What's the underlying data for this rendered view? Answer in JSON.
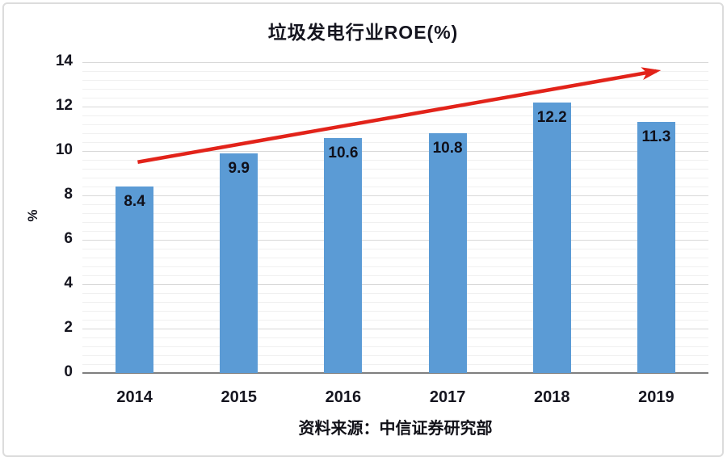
{
  "chart_data": {
    "type": "bar",
    "title": "垃圾发电行业ROE(%)",
    "categories": [
      "2014",
      "2015",
      "2016",
      "2017",
      "2018",
      "2019"
    ],
    "values": [
      8.4,
      9.9,
      10.6,
      10.8,
      12.2,
      11.3
    ],
    "value_labels": [
      "8.4",
      "9.9",
      "10.6",
      "10.8",
      "12.2",
      "11.3"
    ],
    "xlabel": "",
    "ylabel": "%",
    "ylim": [
      0,
      14
    ],
    "yticks": [
      0,
      2,
      4,
      6,
      8,
      10,
      12,
      14
    ],
    "ytick_step": 2,
    "minor_gridline_divisions": 5,
    "grid": "horizontal-major-and-minor",
    "legend": "none",
    "bar_color": "#5b9bd5",
    "text_color": "#15151f",
    "gridline_major_color": "#d8d8d8",
    "gridline_minor_color": "#f0f0f0",
    "axis_line_color": "#7f7f7f",
    "annotation_arrow": {
      "description": "upward trend arrow across the chart",
      "color": "#e2231a",
      "from": {
        "category_index": 0.03,
        "value": 9.5
      },
      "to": {
        "category_index": 5.0,
        "value": 13.6
      }
    }
  },
  "source": {
    "text": "资料来源：中信证券研究部"
  }
}
